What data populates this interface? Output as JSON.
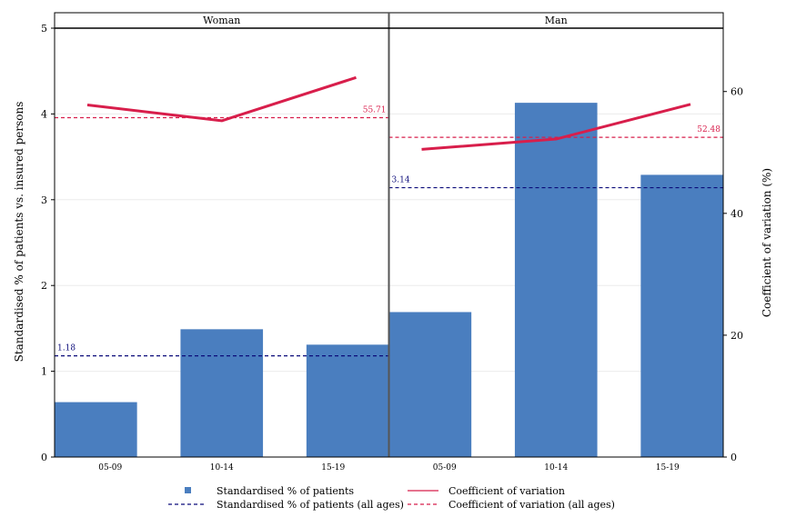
{
  "chart_data": {
    "type": "bar",
    "panels": [
      {
        "name": "Woman",
        "categories": [
          "05-09",
          "10-14",
          "15-19"
        ],
        "patients_pct": [
          0.64,
          1.49,
          1.31
        ],
        "cv_pct": [
          57.8,
          55.2,
          62.3
        ],
        "ref_patients_all_ages": 1.18,
        "ref_cv_all_ages": 55.71,
        "ref_patients_label": "1.18",
        "ref_cv_label": "55.71"
      },
      {
        "name": "Man",
        "categories": [
          "05-09",
          "10-14",
          "15-19"
        ],
        "patients_pct": [
          1.69,
          4.13,
          3.29
        ],
        "cv_pct": [
          50.5,
          52.2,
          57.9
        ],
        "ref_patients_all_ages": 3.14,
        "ref_cv_all_ages": 52.48,
        "ref_patients_label": "3.14",
        "ref_cv_label": "52.48"
      }
    ],
    "y_left": {
      "label": "Standardised % of patients vs. insured persons",
      "range": [
        0,
        5
      ],
      "ticks": [
        0,
        1,
        2,
        3,
        4,
        5
      ],
      "tick_labels": [
        "0",
        "1",
        "2",
        "3",
        "4",
        "5"
      ]
    },
    "y_right": {
      "label": "Coefficient of variation (%)",
      "range": [
        0,
        70.4
      ],
      "ticks": [
        0,
        20,
        40,
        60
      ],
      "tick_labels": [
        "0",
        "20",
        "40",
        "60"
      ]
    },
    "legend": {
      "position": "bottom",
      "items": [
        {
          "label": "Standardised % of patients",
          "kind": "square"
        },
        {
          "label": "Coefficient of variation",
          "kind": "solid-line"
        },
        {
          "label": "Standardised % of patients (all ages)",
          "kind": "dashed-navy"
        },
        {
          "label": "Coefficient of variation (all ages)",
          "kind": "dashed-red"
        }
      ]
    },
    "colors": {
      "bar": "#4a7ebf",
      "cv_line": "#d81e4b",
      "ref_patients": "#0b0b7a",
      "ref_cv": "#d81e4b",
      "grid": "#ececec",
      "frame": "#000000"
    },
    "grid": true
  }
}
